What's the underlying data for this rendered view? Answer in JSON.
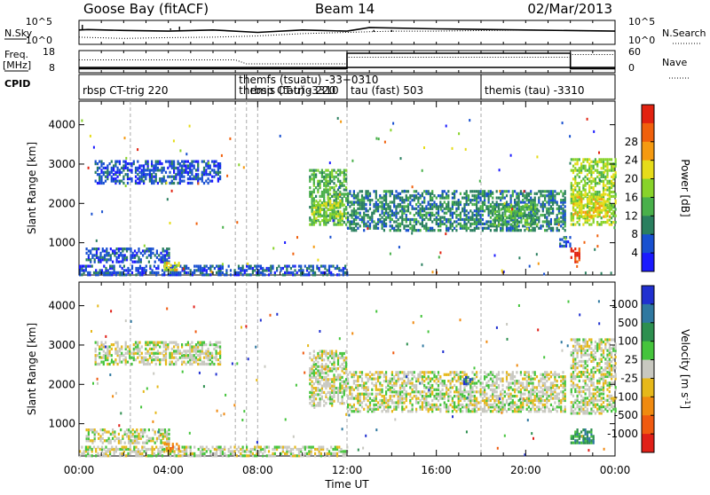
{
  "header": {
    "station": "Goose Bay (fitACF)",
    "beam": "Beam 14",
    "date": "02/Mar/2013"
  },
  "chart_data": [
    {
      "type": "line",
      "panel": "noise",
      "left_label": "N.Sky",
      "right_label": "N.Search",
      "left_ticks": [
        "10^5",
        "10^0"
      ],
      "right_ticks": [
        "10^5",
        "10^0"
      ],
      "series": [
        {
          "name": "N.Sky",
          "style": "solid",
          "x": [
            0,
            0.4,
            2,
            4,
            6,
            8,
            10,
            12,
            13,
            16,
            20,
            24
          ],
          "values": [
            0.6,
            0.62,
            0.58,
            0.55,
            0.6,
            0.5,
            0.6,
            0.55,
            0.7,
            0.65,
            0.6,
            0.55
          ]
        },
        {
          "name": "N.Search",
          "style": "dotted",
          "x": [
            0,
            2,
            4,
            6,
            8,
            10,
            12,
            14,
            16,
            20,
            24
          ],
          "values": [
            0.3,
            0.25,
            0.28,
            0.3,
            0.35,
            0.45,
            0.5,
            0.55,
            0.55,
            0.6,
            0.55
          ]
        }
      ]
    },
    {
      "type": "line",
      "panel": "frequency",
      "left_label": "Freq.",
      "left_unit": "[MHz]",
      "left_ticks": [
        "18",
        "8"
      ],
      "right_label": "Nave",
      "right_ticks": [
        "60",
        "0"
      ],
      "series": [
        {
          "name": "Freq.",
          "style": "solid",
          "x": [
            0,
            7.2,
            7.2,
            12,
            12,
            22,
            22,
            24
          ],
          "values": [
            10.5,
            10.5,
            10.5,
            10.5,
            10.5,
            10.5,
            10.5,
            10.5
          ]
        },
        {
          "name": "Nave",
          "style": "stair",
          "x": [
            0,
            12,
            12,
            22,
            22,
            24
          ],
          "values": [
            2,
            2,
            60,
            60,
            2,
            2
          ]
        },
        {
          "name": "Nave-dotted",
          "style": "dotted",
          "x": [
            0,
            7.0,
            7.5,
            12,
            12,
            22,
            22,
            24
          ],
          "values": [
            35,
            35,
            20,
            20,
            45,
            45,
            55,
            55
          ]
        }
      ]
    },
    {
      "type": "table",
      "panel": "cpid",
      "label": "CPID",
      "segments": [
        {
          "start": 0,
          "text": "rbsp CT-trig 220"
        },
        {
          "start": 7.0,
          "text": "themis (tau) -3310"
        },
        {
          "start": 7.5,
          "text": "rbsp CT-trig 220"
        },
        {
          "start": 12.0,
          "text": "tau (fast) 503"
        },
        {
          "start": 18.0,
          "text": "themis (tau) -3310"
        }
      ],
      "overlap_text": "themfs (tsuatu) -33+0310"
    },
    {
      "type": "heatmap",
      "panel": "power",
      "ylabel": "Slant Range [km]",
      "y_ticks": [
        1000,
        2000,
        3000,
        4000
      ],
      "ylim": [
        180,
        4600
      ],
      "colorbar_label": "Power [dB]",
      "colorbar_ticks": [
        4,
        8,
        12,
        16,
        20,
        24,
        28
      ],
      "colorbar_colors": [
        "#1a1aff",
        "#1850d0",
        "#2a7f5f",
        "#49b04a",
        "#88d32a",
        "#e6dc1a",
        "#f59a10",
        "#f0600c",
        "#e22210"
      ],
      "vlines": [
        2.3,
        7.0,
        7.5,
        8.0,
        12.0,
        18.0
      ],
      "patches": [
        {
          "x0": 0.7,
          "x1": 6.3,
          "y0": 2550,
          "y1": 3150,
          "level": 1
        },
        {
          "x0": 0.3,
          "x1": 4.0,
          "y0": 550,
          "y1": 900,
          "level": 1
        },
        {
          "x0": 0.0,
          "x1": 12.0,
          "y0": 220,
          "y1": 480,
          "level": 1
        },
        {
          "x0": 10.3,
          "x1": 12.0,
          "y0": 1500,
          "y1": 2900,
          "level": 3
        },
        {
          "x0": 10.4,
          "x1": 11.8,
          "y0": 1600,
          "y1": 2100,
          "level": 4
        },
        {
          "x0": 12.0,
          "x1": 21.8,
          "y0": 1350,
          "y1": 2350,
          "level": 2
        },
        {
          "x0": 18.5,
          "x1": 20.5,
          "y0": 1500,
          "y1": 2000,
          "level": 3
        },
        {
          "x0": 22.0,
          "x1": 24.0,
          "y0": 1500,
          "y1": 3200,
          "level": 4
        },
        {
          "x0": 22.1,
          "x1": 23.8,
          "y0": 1700,
          "y1": 2300,
          "level": 5
        },
        {
          "x0": 22.0,
          "x1": 22.4,
          "y0": 550,
          "y1": 900,
          "level": 8
        },
        {
          "x0": 21.5,
          "x1": 22.0,
          "y0": 950,
          "y1": 1200,
          "level": 1
        },
        {
          "x0": 3.8,
          "x1": 4.5,
          "y0": 350,
          "y1": 520,
          "level": 5
        }
      ]
    },
    {
      "type": "heatmap",
      "panel": "velocity",
      "ylabel": "Slant Range [km]",
      "y_ticks": [
        1000,
        2000,
        3000,
        4000
      ],
      "ylim": [
        180,
        4600
      ],
      "colorbar_label": "Velocity [m s",
      "colorbar_sup": "-1",
      "colorbar_suffix": "]",
      "colorbar_ticks": [
        1000,
        500,
        100,
        25,
        -25,
        -100,
        -500,
        -1000
      ],
      "colorbar_colors": [
        "#2030d0",
        "#2f78a0",
        "#2d8f4f",
        "#45c43c",
        "#c8c8c0",
        "#e6b81a",
        "#f08a10",
        "#f05a10",
        "#e02018"
      ],
      "vlines": [
        2.3,
        7.0,
        7.5,
        8.0,
        12.0,
        18.0
      ],
      "patches": [
        {
          "x0": 0.7,
          "x1": 6.3,
          "y0": 2550,
          "y1": 3150,
          "level": 4
        },
        {
          "x0": 0.3,
          "x1": 4.0,
          "y0": 550,
          "y1": 900,
          "level": 4
        },
        {
          "x0": 0.0,
          "x1": 12.0,
          "y0": 220,
          "y1": 480,
          "level": 4
        },
        {
          "x0": 10.3,
          "x1": 12.0,
          "y0": 1500,
          "y1": 2900,
          "level": 4
        },
        {
          "x0": 12.0,
          "x1": 21.8,
          "y0": 1350,
          "y1": 2350,
          "level": 4
        },
        {
          "x0": 22.0,
          "x1": 24.0,
          "y0": 1300,
          "y1": 3200,
          "level": 4
        },
        {
          "x0": 22.0,
          "x1": 23.0,
          "y0": 550,
          "y1": 900,
          "level": 2
        },
        {
          "x0": 3.8,
          "x1": 4.5,
          "y0": 350,
          "y1": 520,
          "level": 6
        },
        {
          "x0": 17.2,
          "x1": 17.6,
          "y0": 2050,
          "y1": 2250,
          "level": 1
        }
      ]
    }
  ],
  "x_axis": {
    "label": "Time UT",
    "ticks": [
      "00:00",
      "04:00",
      "08:00",
      "12:00",
      "16:00",
      "20:00",
      "00:00"
    ],
    "xlim": [
      0,
      24
    ]
  }
}
